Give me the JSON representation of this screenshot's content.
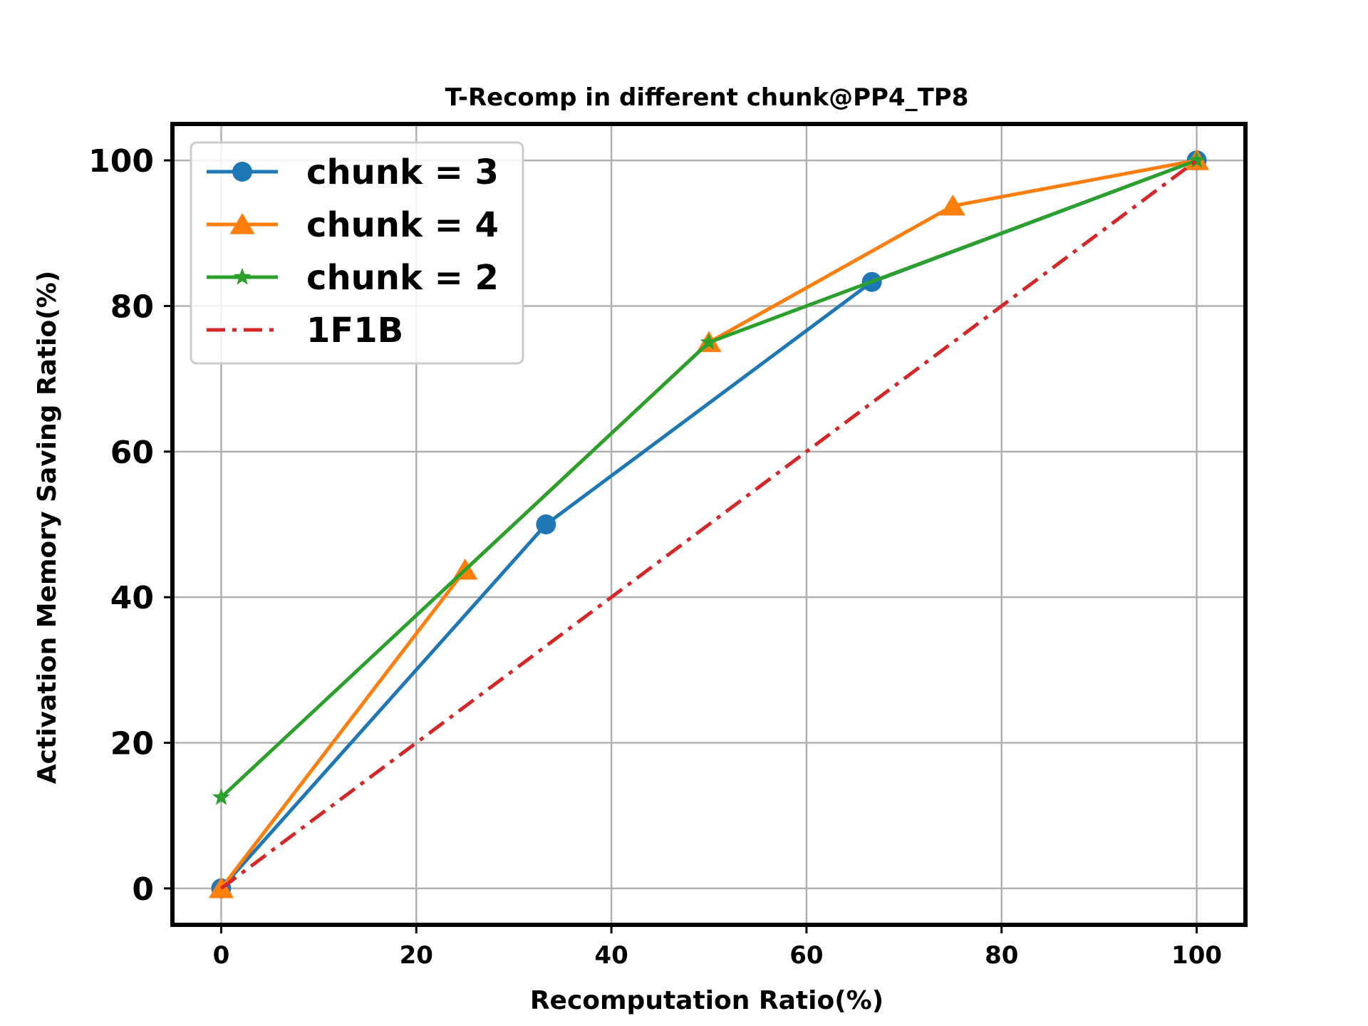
{
  "chart_data": {
    "type": "line",
    "title": "T-Recomp in different chunk@PP4_TP8",
    "xlabel": "Recomputation Ratio(%)",
    "ylabel": "Activation Memory Saving Ratio(%)",
    "xlim": [
      -5,
      105
    ],
    "ylim": [
      -5,
      105
    ],
    "xticks": [
      0,
      20,
      40,
      60,
      80,
      100
    ],
    "yticks": [
      0,
      20,
      40,
      60,
      80,
      100
    ],
    "grid": true,
    "legend_position": "top-left",
    "series": [
      {
        "name": "chunk = 3",
        "color": "#1f77b4",
        "marker": "circle",
        "linestyle": "solid",
        "x": [
          0,
          33.3,
          66.7,
          100
        ],
        "y": [
          0,
          50,
          83.3,
          100
        ]
      },
      {
        "name": "chunk = 4",
        "color": "#ff7f0e",
        "marker": "triangle",
        "linestyle": "solid",
        "x": [
          0,
          25,
          50,
          75,
          100
        ],
        "y": [
          0,
          43.75,
          75,
          93.75,
          100
        ]
      },
      {
        "name": "chunk = 2",
        "color": "#2ca02c",
        "marker": "star",
        "linestyle": "solid",
        "x": [
          0,
          50,
          100
        ],
        "y": [
          12.5,
          75,
          100
        ]
      },
      {
        "name": "1F1B",
        "color": "#d62728",
        "marker": "none",
        "linestyle": "dashdot",
        "x": [
          0,
          100
        ],
        "y": [
          0,
          100
        ]
      }
    ]
  }
}
